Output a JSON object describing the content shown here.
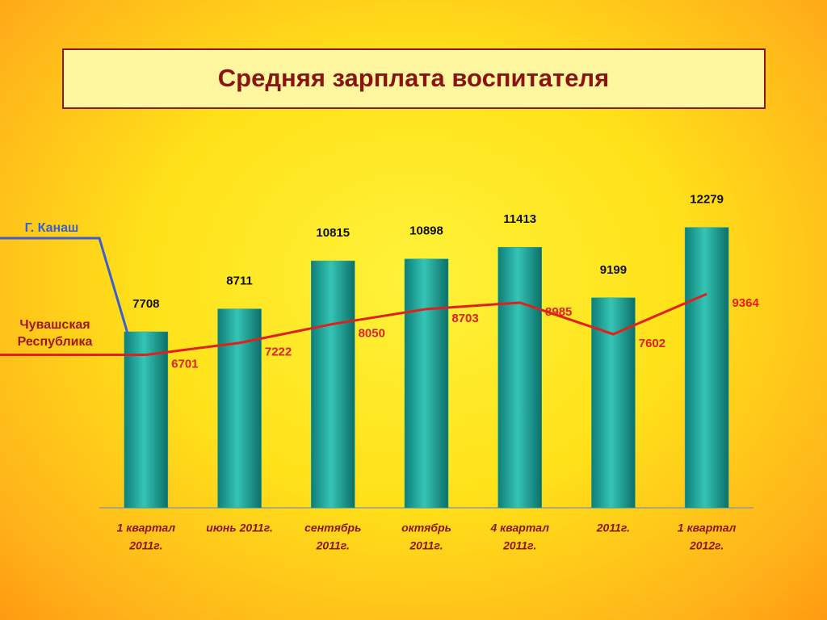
{
  "chart_data": {
    "type": "bar-line",
    "title": "Средняя зарплата воспитателя",
    "categories": [
      [
        "1 квартал",
        "2011г."
      ],
      [
        "июнь 2011г."
      ],
      [
        "сентябрь",
        "2011г."
      ],
      [
        "октябрь",
        "2011г."
      ],
      [
        "4 квартал",
        "2011г."
      ],
      [
        "2011г."
      ],
      [
        "1 квартал",
        "2012г."
      ]
    ],
    "series": [
      {
        "name": "Г. Канаш",
        "color": "#1fa89c",
        "legend_color": "#3a5fd0",
        "values": [
          7708,
          8711,
          10815,
          10898,
          11413,
          9199,
          12279
        ]
      },
      {
        "name": "Чувашская Республика",
        "color": "#e0201c",
        "legend_color": "#a01818",
        "values": [
          6701,
          7222,
          8050,
          8703,
          8985,
          7602,
          9364
        ]
      }
    ],
    "ylim": [
      0,
      14000
    ]
  }
}
